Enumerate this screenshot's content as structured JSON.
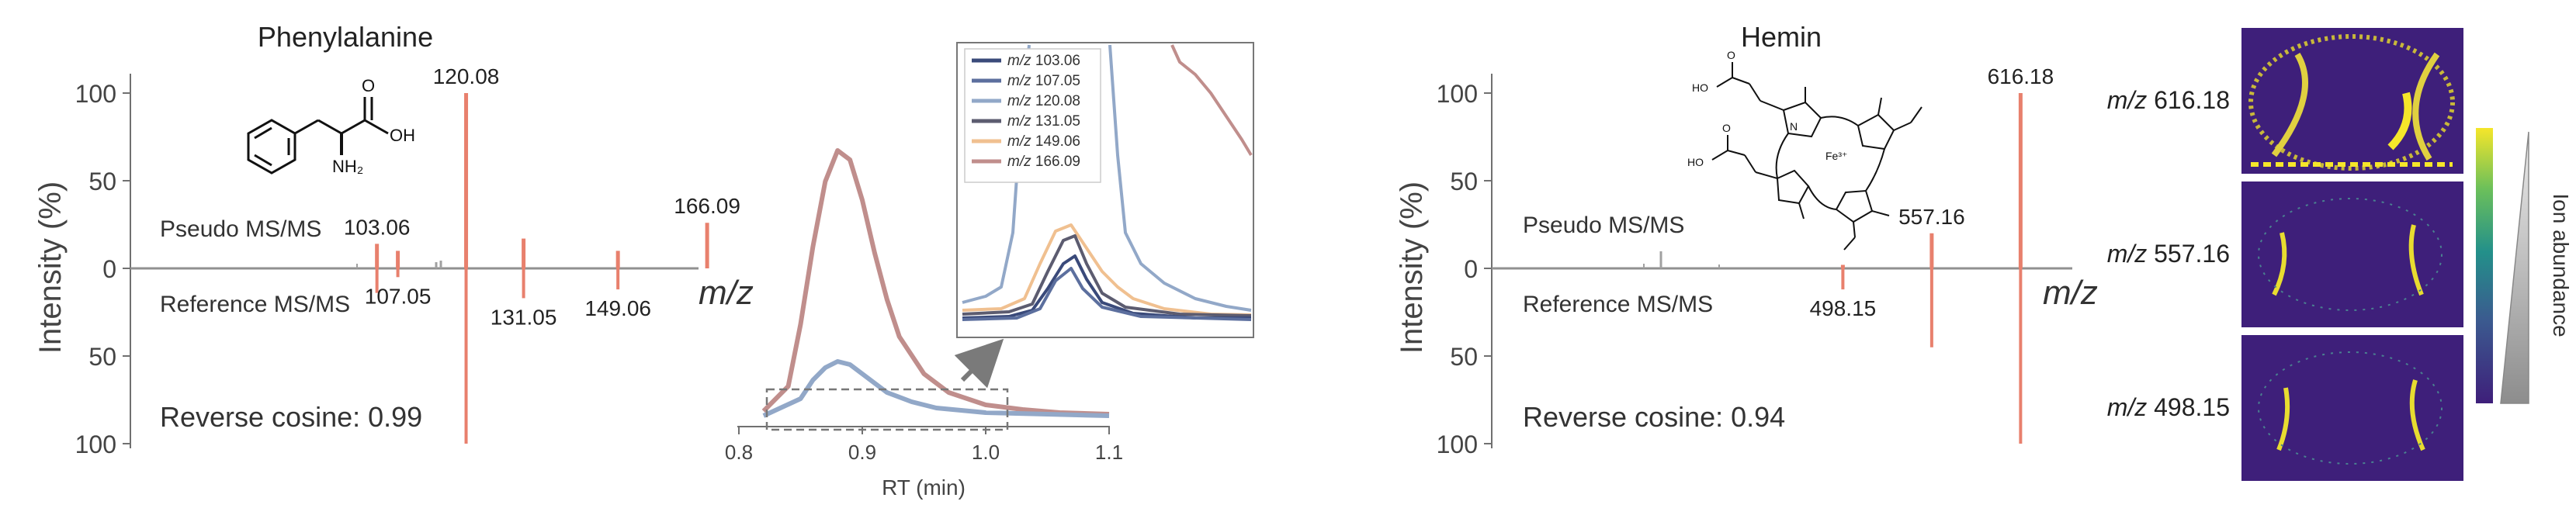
{
  "panels": {
    "left": {
      "title": "Phenylalanine",
      "ylabel": "Intensity (%)",
      "top_label": "Pseudo MS/MS",
      "bottom_label": "Reference MS/MS",
      "xlabel": "m/z",
      "cosine": "Reverse cosine: 0.99",
      "ytick_labels": [
        "100",
        "50",
        "0",
        "50",
        "100"
      ],
      "compound": {
        "label_acid": "OH",
        "label_o": "O",
        "label_amine": "NH₂"
      }
    },
    "rt": {
      "xlabel": "RT (min)",
      "xtick_labels": [
        "0.8",
        "0.9",
        "1.0",
        "1.1"
      ]
    },
    "inset": {
      "legend": [
        {
          "italic": "m/z",
          "value": "103.06"
        },
        {
          "italic": "m/z",
          "value": "107.05"
        },
        {
          "italic": "m/z",
          "value": "120.08"
        },
        {
          "italic": "m/z",
          "value": "131.05"
        },
        {
          "italic": "m/z",
          "value": "149.06"
        },
        {
          "italic": "m/z",
          "value": "166.09"
        }
      ]
    },
    "right": {
      "title": "Hemin",
      "ylabel": "Intensity (%)",
      "top_label": "Pseudo MS/MS",
      "bottom_label": "Reference MS/MS",
      "xlabel": "m/z",
      "cosine": "Reverse cosine: 0.94",
      "ytick_labels": [
        "100",
        "50",
        "0",
        "50",
        "100"
      ],
      "compound": {
        "label_ho_top": "HO",
        "label_ho_bottom": "HO",
        "label_o_top": "O",
        "label_o_bottom": "O",
        "label_fe": "Fe³⁺",
        "label_n": "N"
      }
    },
    "images": {
      "labels": [
        {
          "italic": "m/z",
          "value": "616.18"
        },
        {
          "italic": "m/z",
          "value": "557.16"
        },
        {
          "italic": "m/z",
          "value": "498.15"
        }
      ],
      "colorbar_label": "Ion abundance"
    }
  },
  "colors": {
    "peak": "#e8806d",
    "axis": "#707070",
    "minor_peak": "#a0a0a0",
    "bg_image": "#3e1f7a",
    "series": [
      "#3a4a7a",
      "#5c6f9e",
      "#92a8c8",
      "#5c5c70",
      "#f0c090",
      "#c08e8c"
    ]
  },
  "chart_data": [
    {
      "type": "bar",
      "title": "Phenylalanine",
      "xlabel": "m/z",
      "ylabel": "Intensity (%)",
      "ylim": [
        -100,
        100
      ],
      "series": [
        {
          "name": "Pseudo MS/MS",
          "peaks": [
            {
              "mz": 103.06,
              "intensity": 14,
              "label": "103.06"
            },
            {
              "mz": 107.05,
              "intensity": 10
            },
            {
              "mz": 120.08,
              "intensity": 100,
              "label": "120.08"
            },
            {
              "mz": 131.05,
              "intensity": 17
            },
            {
              "mz": 149.06,
              "intensity": 10
            },
            {
              "mz": 166.09,
              "intensity": 26,
              "label": "166.09"
            }
          ]
        },
        {
          "name": "Reference MS/MS",
          "peaks": [
            {
              "mz": 103.06,
              "intensity": 14
            },
            {
              "mz": 107.05,
              "intensity": 5,
              "label": "107.05"
            },
            {
              "mz": 120.08,
              "intensity": 100
            },
            {
              "mz": 131.05,
              "intensity": 17,
              "label": "131.05"
            },
            {
              "mz": 149.06,
              "intensity": 12,
              "label": "149.06"
            },
            {
              "mz": 166.09,
              "intensity": 0
            }
          ]
        }
      ]
    },
    {
      "type": "line",
      "xlabel": "RT (min)",
      "xlim": [
        0.8,
        1.1
      ],
      "series": [
        {
          "name": "m/z 166.09",
          "x": [
            0.82,
            0.84,
            0.85,
            0.86,
            0.87,
            0.88,
            0.89,
            0.9,
            0.91,
            0.92,
            0.93,
            0.95,
            0.97,
            1.0,
            1.03,
            1.06,
            1.1
          ],
          "y": [
            2,
            10,
            30,
            55,
            76,
            86,
            83,
            70,
            53,
            38,
            26,
            14,
            8,
            4,
            2.5,
            1.5,
            1
          ]
        },
        {
          "name": "m/z 120.08",
          "x": [
            0.82,
            0.85,
            0.86,
            0.87,
            0.88,
            0.89,
            0.9,
            0.92,
            0.94,
            0.96,
            1.0,
            1.05,
            1.1
          ],
          "y": [
            0.5,
            6,
            12,
            16,
            18,
            17,
            14,
            8,
            5,
            3,
            1.5,
            1,
            0.5
          ]
        }
      ]
    },
    {
      "type": "bar",
      "title": "Hemin",
      "xlabel": "m/z",
      "ylabel": "Intensity (%)",
      "ylim": [
        -100,
        100
      ],
      "series": [
        {
          "name": "Pseudo MS/MS",
          "peaks": [
            {
              "mz": 498.15,
              "intensity": 2
            },
            {
              "mz": 557.16,
              "intensity": 20,
              "label": "557.16"
            },
            {
              "mz": 616.18,
              "intensity": 100,
              "label": "616.18"
            }
          ]
        },
        {
          "name": "Reference MS/MS",
          "peaks": [
            {
              "mz": 498.15,
              "intensity": 12,
              "label": "498.15"
            },
            {
              "mz": 557.16,
              "intensity": 45
            },
            {
              "mz": 616.18,
              "intensity": 100
            }
          ]
        }
      ]
    }
  ]
}
